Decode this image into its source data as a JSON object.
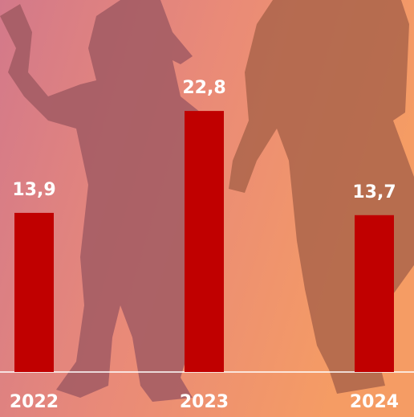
{
  "chart_data": {
    "type": "bar",
    "categories": [
      "2022",
      "2023",
      "2024"
    ],
    "values": [
      13.9,
      22.8,
      13.7
    ],
    "value_labels": [
      "13,9",
      "22,8",
      "13,7"
    ],
    "color": "#c00000"
  }
}
